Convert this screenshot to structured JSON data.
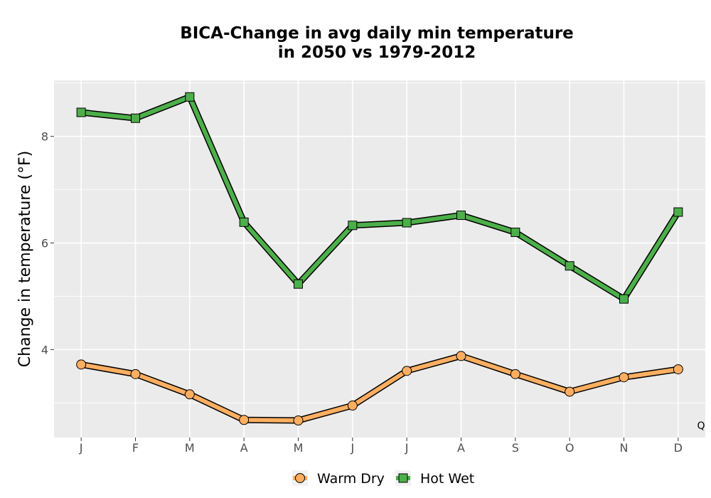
{
  "chart_data": {
    "type": "line",
    "title_line1": "BICA-Change in avg daily min temperature",
    "title_line2": "in 2050 vs 1979-2012",
    "xlabel": "",
    "ylabel": "Change in temperature (°F)",
    "categories": [
      "J",
      "F",
      "M",
      "A",
      "M",
      "J",
      "J",
      "A",
      "S",
      "O",
      "N",
      "D"
    ],
    "ylim": [
      2.35,
      9.05
    ],
    "yticks": [
      4,
      6,
      8
    ],
    "grid": true,
    "legend_position": "bottom",
    "corner_label": "Q",
    "series": [
      {
        "name": "Warm Dry",
        "marker": "circle",
        "color": "#fdae61",
        "values": [
          3.72,
          3.54,
          3.16,
          2.68,
          2.67,
          2.95,
          3.6,
          3.88,
          3.54,
          3.21,
          3.48,
          3.63
        ]
      },
      {
        "name": "Hot Wet",
        "marker": "square",
        "color": "#4daf4a",
        "values": [
          8.45,
          8.34,
          8.74,
          6.39,
          5.23,
          6.33,
          6.38,
          6.52,
          6.2,
          5.57,
          4.95,
          6.58
        ]
      }
    ]
  }
}
